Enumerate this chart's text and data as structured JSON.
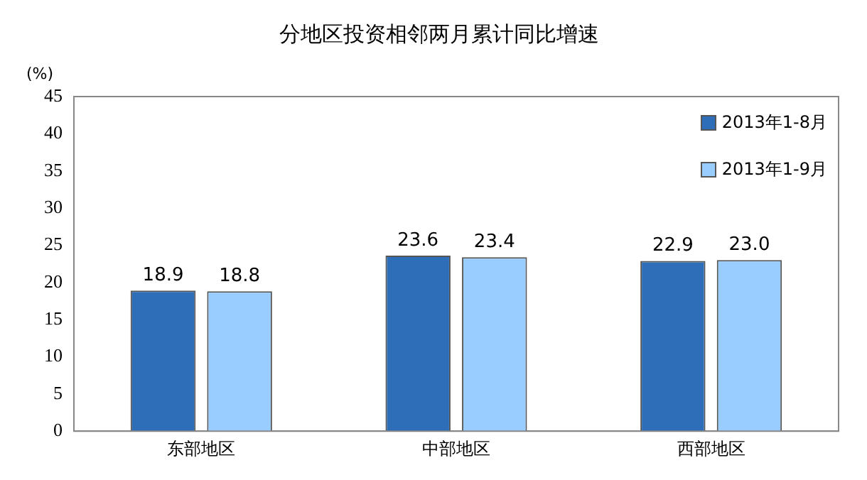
{
  "chart_data": {
    "type": "bar",
    "title": "分地区投资相邻两月累计同比增速",
    "ylabel": "(%)",
    "categories": [
      "东部地区",
      "中部地区",
      "西部地区"
    ],
    "series": [
      {
        "name": "2013年1-8月",
        "color": "#2e6eb8",
        "values": [
          18.9,
          23.6,
          22.9
        ],
        "value_labels": [
          "18.9",
          "23.6",
          "22.9"
        ]
      },
      {
        "name": "2013年1-9月",
        "color": "#99ccff",
        "values": [
          18.8,
          23.4,
          23.0
        ],
        "value_labels": [
          "18.8",
          "23.4",
          "23.0"
        ]
      }
    ],
    "ylim": [
      0,
      45
    ],
    "yticks": [
      0,
      5,
      10,
      15,
      20,
      25,
      30,
      35,
      40,
      45
    ],
    "grid": false,
    "legend": "top right"
  }
}
